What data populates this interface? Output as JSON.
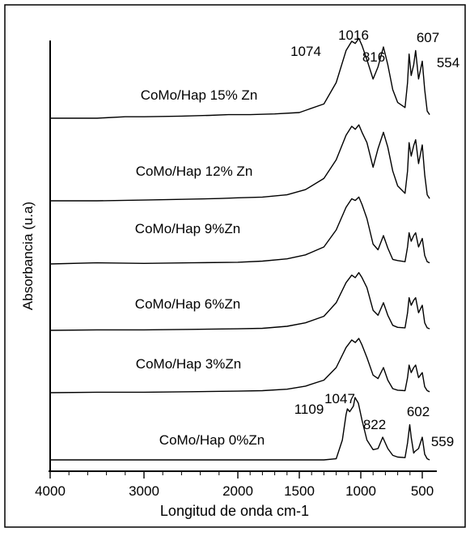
{
  "chart_data": {
    "type": "line",
    "title": "",
    "xlabel": "Longitud de onda cm-1",
    "ylabel": "Absorbancia (u.a)",
    "x_tick_labels": [
      "4000",
      "3000",
      "2000",
      "1500",
      "1000",
      "500"
    ],
    "xlim": [
      4000,
      400
    ],
    "x_scale": "compressed-below-2000",
    "y_units": "arbitrary",
    "grid": false,
    "legend": "none",
    "series": [
      {
        "name": "CoMo/Hap 15% Zn",
        "points": [
          [
            4000,
            0.0
          ],
          [
            3500,
            0.0
          ],
          [
            3200,
            0.02
          ],
          [
            3000,
            0.02
          ],
          [
            2600,
            0.03
          ],
          [
            2300,
            0.04
          ],
          [
            2100,
            0.05
          ],
          [
            1900,
            0.05
          ],
          [
            1700,
            0.06
          ],
          [
            1500,
            0.08
          ],
          [
            1300,
            0.2
          ],
          [
            1200,
            0.5
          ],
          [
            1120,
            0.95
          ],
          [
            1074,
            1.08
          ],
          [
            1045,
            1.05
          ],
          [
            1016,
            1.12
          ],
          [
            990,
            1.02
          ],
          [
            950,
            0.82
          ],
          [
            900,
            0.55
          ],
          [
            860,
            0.72
          ],
          [
            816,
            1.0
          ],
          [
            780,
            0.75
          ],
          [
            740,
            0.4
          ],
          [
            700,
            0.22
          ],
          [
            640,
            0.15
          ],
          [
            620,
            0.5
          ],
          [
            607,
            0.9
          ],
          [
            590,
            0.6
          ],
          [
            570,
            0.75
          ],
          [
            554,
            0.95
          ],
          [
            530,
            0.55
          ],
          [
            500,
            0.8
          ],
          [
            480,
            0.4
          ],
          [
            460,
            0.1
          ],
          [
            440,
            0.05
          ]
        ]
      },
      {
        "name": "CoMo/Hap 12% Zn",
        "points": [
          [
            4000,
            0.0
          ],
          [
            3500,
            0.0
          ],
          [
            3000,
            0.01
          ],
          [
            2600,
            0.02
          ],
          [
            2200,
            0.03
          ],
          [
            2000,
            0.04
          ],
          [
            1800,
            0.05
          ],
          [
            1600,
            0.08
          ],
          [
            1450,
            0.15
          ],
          [
            1300,
            0.3
          ],
          [
            1200,
            0.55
          ],
          [
            1120,
            0.88
          ],
          [
            1074,
            1.0
          ],
          [
            1045,
            0.96
          ],
          [
            1016,
            1.02
          ],
          [
            990,
            0.92
          ],
          [
            950,
            0.78
          ],
          [
            900,
            0.45
          ],
          [
            860,
            0.7
          ],
          [
            816,
            0.92
          ],
          [
            780,
            0.72
          ],
          [
            740,
            0.4
          ],
          [
            700,
            0.2
          ],
          [
            640,
            0.1
          ],
          [
            620,
            0.4
          ],
          [
            607,
            0.78
          ],
          [
            590,
            0.6
          ],
          [
            570,
            0.74
          ],
          [
            554,
            0.82
          ],
          [
            530,
            0.5
          ],
          [
            500,
            0.75
          ],
          [
            480,
            0.35
          ],
          [
            460,
            0.08
          ],
          [
            440,
            0.03
          ]
        ]
      },
      {
        "name": "CoMo/Hap 9%Zn",
        "points": [
          [
            4000,
            0.0
          ],
          [
            3500,
            0.02
          ],
          [
            3000,
            0.01
          ],
          [
            2500,
            0.02
          ],
          [
            2000,
            0.03
          ],
          [
            1800,
            0.05
          ],
          [
            1600,
            0.09
          ],
          [
            1450,
            0.16
          ],
          [
            1300,
            0.3
          ],
          [
            1200,
            0.6
          ],
          [
            1120,
            1.0
          ],
          [
            1074,
            1.15
          ],
          [
            1045,
            1.12
          ],
          [
            1016,
            1.18
          ],
          [
            990,
            1.05
          ],
          [
            950,
            0.8
          ],
          [
            900,
            0.35
          ],
          [
            860,
            0.25
          ],
          [
            816,
            0.5
          ],
          [
            780,
            0.28
          ],
          [
            740,
            0.08
          ],
          [
            700,
            0.06
          ],
          [
            640,
            0.04
          ],
          [
            620,
            0.3
          ],
          [
            607,
            0.55
          ],
          [
            590,
            0.4
          ],
          [
            570,
            0.5
          ],
          [
            554,
            0.55
          ],
          [
            530,
            0.3
          ],
          [
            500,
            0.45
          ],
          [
            480,
            0.15
          ],
          [
            460,
            0.04
          ],
          [
            440,
            0.02
          ]
        ]
      },
      {
        "name": "CoMo/Hap 6%Zn",
        "points": [
          [
            4000,
            0.0
          ],
          [
            3500,
            0.01
          ],
          [
            3000,
            0.01
          ],
          [
            2500,
            0.02
          ],
          [
            2000,
            0.03
          ],
          [
            1800,
            0.04
          ],
          [
            1600,
            0.08
          ],
          [
            1450,
            0.15
          ],
          [
            1300,
            0.28
          ],
          [
            1200,
            0.55
          ],
          [
            1120,
            0.95
          ],
          [
            1074,
            1.1
          ],
          [
            1045,
            1.05
          ],
          [
            1016,
            1.15
          ],
          [
            990,
            1.05
          ],
          [
            950,
            0.85
          ],
          [
            900,
            0.4
          ],
          [
            860,
            0.3
          ],
          [
            816,
            0.55
          ],
          [
            780,
            0.3
          ],
          [
            740,
            0.1
          ],
          [
            700,
            0.06
          ],
          [
            640,
            0.05
          ],
          [
            620,
            0.35
          ],
          [
            607,
            0.65
          ],
          [
            590,
            0.5
          ],
          [
            570,
            0.6
          ],
          [
            554,
            0.65
          ],
          [
            530,
            0.35
          ],
          [
            500,
            0.5
          ],
          [
            480,
            0.15
          ],
          [
            460,
            0.05
          ],
          [
            440,
            0.03
          ]
        ]
      },
      {
        "name": "CoMo/Hap 3%Zn",
        "points": [
          [
            4000,
            0.0
          ],
          [
            3500,
            0.01
          ],
          [
            3000,
            0.01
          ],
          [
            2500,
            0.02
          ],
          [
            2000,
            0.03
          ],
          [
            1800,
            0.04
          ],
          [
            1600,
            0.07
          ],
          [
            1450,
            0.13
          ],
          [
            1300,
            0.25
          ],
          [
            1200,
            0.5
          ],
          [
            1120,
            0.9
          ],
          [
            1074,
            1.05
          ],
          [
            1045,
            1.0
          ],
          [
            1016,
            1.08
          ],
          [
            990,
            0.95
          ],
          [
            950,
            0.7
          ],
          [
            900,
            0.35
          ],
          [
            860,
            0.28
          ],
          [
            816,
            0.5
          ],
          [
            780,
            0.25
          ],
          [
            740,
            0.08
          ],
          [
            700,
            0.05
          ],
          [
            640,
            0.04
          ],
          [
            620,
            0.3
          ],
          [
            607,
            0.55
          ],
          [
            590,
            0.4
          ],
          [
            570,
            0.5
          ],
          [
            554,
            0.55
          ],
          [
            530,
            0.3
          ],
          [
            500,
            0.4
          ],
          [
            480,
            0.12
          ],
          [
            460,
            0.04
          ],
          [
            440,
            0.02
          ]
        ]
      },
      {
        "name": "CoMo/Hap 0%Zn",
        "points": [
          [
            4000,
            0.0
          ],
          [
            3000,
            0.0
          ],
          [
            2000,
            0.0
          ],
          [
            1500,
            0.0
          ],
          [
            1300,
            0.0
          ],
          [
            1200,
            0.02
          ],
          [
            1150,
            0.35
          ],
          [
            1120,
            0.8
          ],
          [
            1109,
            0.9
          ],
          [
            1090,
            0.85
          ],
          [
            1060,
            0.95
          ],
          [
            1047,
            1.1
          ],
          [
            1020,
            1.0
          ],
          [
            990,
            0.7
          ],
          [
            950,
            0.35
          ],
          [
            900,
            0.18
          ],
          [
            860,
            0.2
          ],
          [
            822,
            0.4
          ],
          [
            780,
            0.2
          ],
          [
            740,
            0.08
          ],
          [
            700,
            0.05
          ],
          [
            640,
            0.04
          ],
          [
            620,
            0.3
          ],
          [
            602,
            0.62
          ],
          [
            590,
            0.4
          ],
          [
            570,
            0.12
          ],
          [
            559,
            0.15
          ],
          [
            530,
            0.2
          ],
          [
            500,
            0.4
          ],
          [
            480,
            0.1
          ],
          [
            460,
            0.02
          ],
          [
            440,
            0.0
          ]
        ]
      }
    ],
    "annotations": [
      {
        "text": "1074",
        "series": "CoMo/Hap 15% Zn",
        "x": 1074
      },
      {
        "text": "1016",
        "series": "CoMo/Hap 15% Zn",
        "x": 1016
      },
      {
        "text": "816",
        "series": "CoMo/Hap 15% Zn",
        "x": 816
      },
      {
        "text": "607",
        "series": "CoMo/Hap 15% Zn",
        "x": 607
      },
      {
        "text": "554",
        "series": "CoMo/Hap 15% Zn",
        "x": 554
      },
      {
        "text": "1109",
        "series": "CoMo/Hap 0%Zn",
        "x": 1109
      },
      {
        "text": "1047",
        "series": "CoMo/Hap 0%Zn",
        "x": 1047
      },
      {
        "text": "822",
        "series": "CoMo/Hap 0%Zn",
        "x": 822
      },
      {
        "text": "602",
        "series": "CoMo/Hap 0%Zn",
        "x": 602
      },
      {
        "text": "559",
        "series": "CoMo/Hap 0%Zn",
        "x": 559
      }
    ]
  }
}
